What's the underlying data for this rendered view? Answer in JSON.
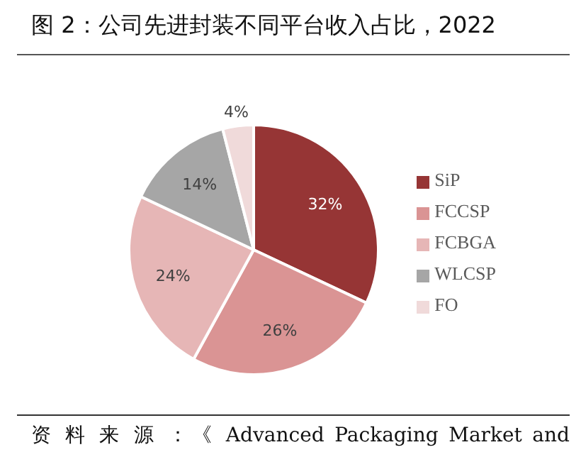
{
  "chart_data": {
    "type": "pie",
    "title": "图 2：公司先进封装不同平台收入占比，2022",
    "categories": [
      "SiP",
      "FCCSP",
      "FCBGA",
      "WLCSP",
      "FO"
    ],
    "values": [
      32,
      26,
      24,
      14,
      4
    ],
    "value_labels": [
      "32%",
      "26%",
      "24%",
      "14%",
      "4%"
    ],
    "colors": [
      "#963535",
      "#da9494",
      "#e6b6b6",
      "#a6a6a6",
      "#f0dada"
    ],
    "legend": "right",
    "annotations": [
      "资 料 来 源 ：《 Advanced Packaging Market and"
    ]
  }
}
